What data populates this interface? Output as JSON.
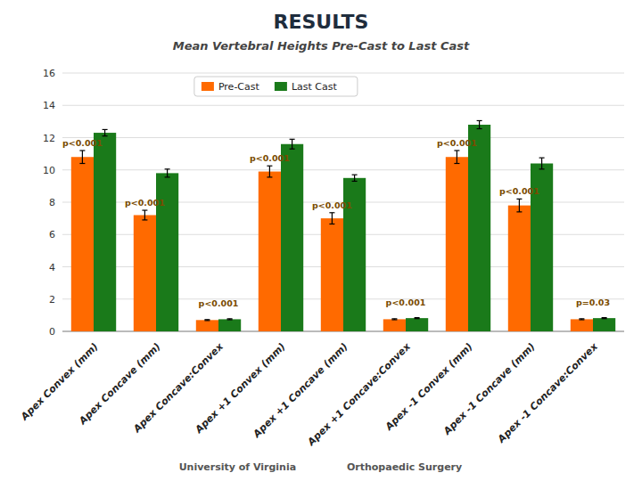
{
  "chart_data": {
    "type": "bar",
    "title": "RESULTS",
    "subtitle": "Mean Vertebral Heights Pre-Cast to Last Cast",
    "categories": [
      "Apex Convex (mm)",
      "Apex Concave (mm)",
      "Apex Concave:Convex",
      "Apex +1 Convex (mm)",
      "Apex +1 Concave (mm)",
      "Apex +1 Concave:Convex",
      "Apex -1 Convex (mm)",
      "Apex -1 Concave (mm)",
      "Apex -1 Concave:Convex"
    ],
    "series": [
      {
        "name": "Pre-Cast",
        "color": "#FF6A00",
        "values": [
          10.8,
          7.2,
          0.7,
          9.9,
          7.0,
          0.75,
          10.8,
          7.8,
          0.75
        ],
        "errors": [
          0.4,
          0.3,
          0.03,
          0.35,
          0.35,
          0.03,
          0.4,
          0.4,
          0.03
        ]
      },
      {
        "name": "Last Cast",
        "color": "#1A7A1A",
        "values": [
          12.3,
          9.8,
          0.75,
          11.6,
          9.5,
          0.82,
          12.8,
          10.4,
          0.82
        ],
        "errors": [
          0.2,
          0.25,
          0.03,
          0.3,
          0.2,
          0.03,
          0.25,
          0.35,
          0.03
        ]
      }
    ],
    "annotations": [
      {
        "text": "p<0.001",
        "category": "Apex Convex (mm)",
        "series": "Pre-Cast"
      },
      {
        "text": "p<0.001",
        "category": "Apex Concave (mm)",
        "series": "Pre-Cast"
      },
      {
        "text": "p<0.001",
        "category": "Apex +1 Convex (mm)",
        "series": "Pre-Cast"
      },
      {
        "text": "p<0.001",
        "category": "Apex +1 Concave (mm)",
        "series": "Pre-Cast"
      },
      {
        "text": "p<0.001",
        "category": "Apex -1 Convex (mm)",
        "series": "Pre-Cast"
      },
      {
        "text": "p<0.001",
        "category": "Apex -1 Concave (mm)",
        "series": "Pre-Cast"
      },
      {
        "text": "p<0.001",
        "category": "Apex Concave:Convex"
      },
      {
        "text": "p<0.001",
        "category": "Apex +1 Concave:Convex"
      },
      {
        "text": "p=0.03",
        "category": "Apex -1 Concave:Convex"
      }
    ],
    "footer": [
      "University of Virginia",
      "Orthopaedic Surgery"
    ],
    "ylim": [
      0,
      16
    ],
    "yticks": [
      0,
      2,
      4,
      6,
      8,
      10,
      12,
      14,
      16
    ],
    "grid": true,
    "legend": "top"
  }
}
